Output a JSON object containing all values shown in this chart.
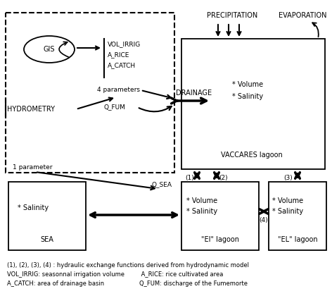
{
  "bg_color": "#ffffff",
  "legend_lines": [
    "(1), (2), (3), (4) : hydraulic exchange functions derived from hydrodynamic model",
    "VOL_IRRIG: seasonnal irrigation volume         A_RICE: rice cultivated area",
    "A_CATCH: area of drainage basin                   Q_FUM: discharge of the Fumemorte"
  ]
}
